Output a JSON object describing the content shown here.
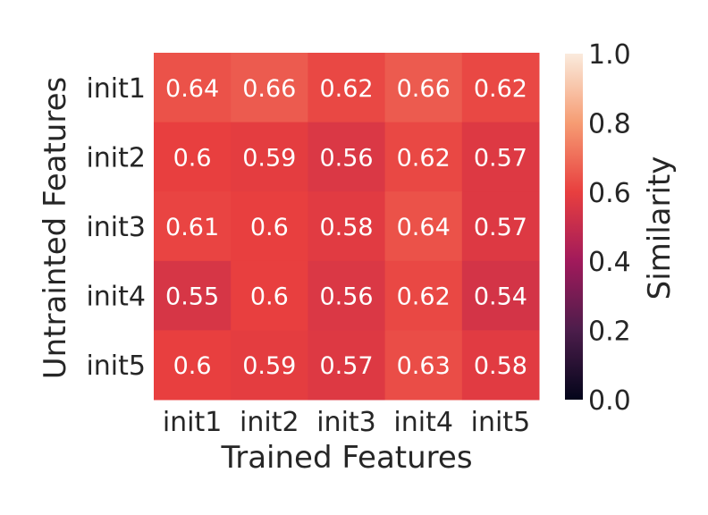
{
  "chart_data": {
    "type": "heatmap",
    "title": "",
    "xlabel": "Trained Features",
    "ylabel": "Untrainted Features",
    "x_categories": [
      "init1",
      "init2",
      "init3",
      "init4",
      "init5"
    ],
    "y_categories": [
      "init1",
      "init2",
      "init3",
      "init4",
      "init5"
    ],
    "values": [
      [
        0.64,
        0.66,
        0.62,
        0.66,
        0.62
      ],
      [
        0.6,
        0.59,
        0.56,
        0.62,
        0.57
      ],
      [
        0.61,
        0.6,
        0.58,
        0.64,
        0.57
      ],
      [
        0.55,
        0.6,
        0.56,
        0.62,
        0.54
      ],
      [
        0.6,
        0.59,
        0.57,
        0.63,
        0.58
      ]
    ],
    "colorbar": {
      "label": "Similarity",
      "range": [
        0.0,
        1.0
      ],
      "ticks": [
        "0.0",
        "0.2",
        "0.4",
        "0.6",
        "0.8",
        "1.0"
      ],
      "colormap": "rocket",
      "colormap_stops": [
        "#03051a",
        "#4c1d4b",
        "#a11a5b",
        "#e83f3f",
        "#f69c73",
        "#faebdd"
      ]
    },
    "grid": false,
    "legend": "colorbar-right"
  }
}
